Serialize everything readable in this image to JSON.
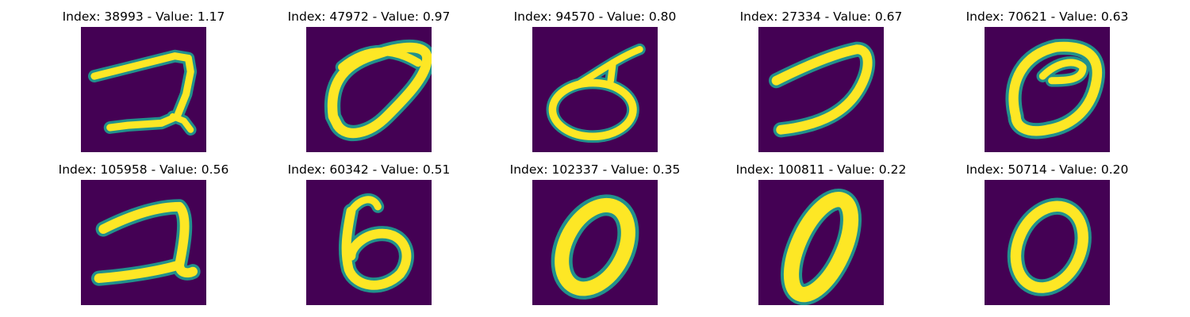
{
  "figure": {
    "colormap": "viridis",
    "colors": {
      "background": "#440154",
      "low": "#3b528b",
      "mid": "#21918c",
      "highmid": "#5ec962",
      "high": "#fde725"
    },
    "panels": [
      {
        "title": "Index: 38993 - Value: 1.17",
        "index": 38993,
        "value": 1.17
      },
      {
        "title": "Index: 47972 - Value: 0.97",
        "index": 47972,
        "value": 0.97
      },
      {
        "title": "Index: 94570 - Value: 0.80",
        "index": 94570,
        "value": 0.8
      },
      {
        "title": "Index: 27334 - Value: 0.67",
        "index": 27334,
        "value": 0.67
      },
      {
        "title": "Index: 70621 - Value: 0.63",
        "index": 70621,
        "value": 0.63
      },
      {
        "title": "Index: 105958 - Value: 0.56",
        "index": 105958,
        "value": 0.56
      },
      {
        "title": "Index: 60342 - Value: 0.51",
        "index": 60342,
        "value": 0.51
      },
      {
        "title": "Index: 102337 - Value: 0.35",
        "index": 102337,
        "value": 0.35
      },
      {
        "title": "Index: 100811 - Value: 0.22",
        "index": 100811,
        "value": 0.22
      },
      {
        "title": "Index: 50714 - Value: 0.20",
        "index": 50714,
        "value": 0.2
      }
    ]
  }
}
